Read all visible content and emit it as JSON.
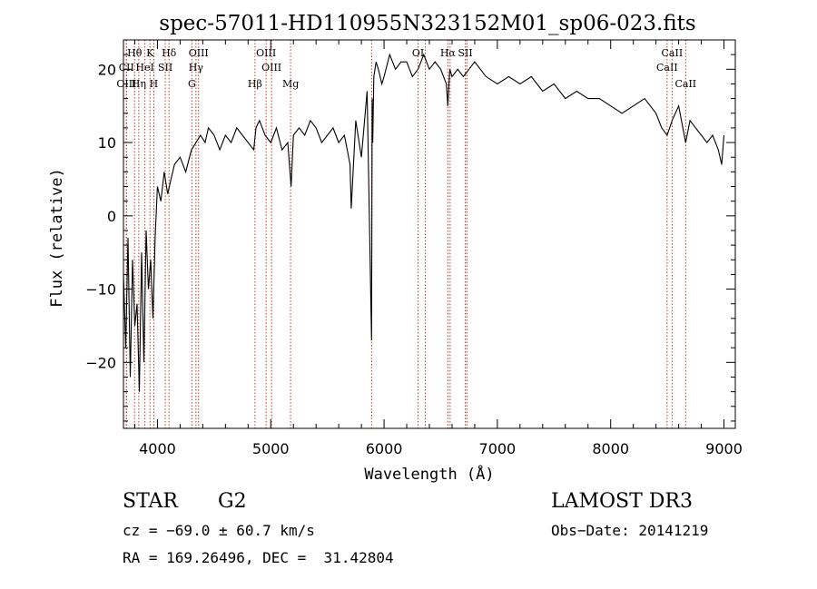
{
  "chart_data": {
    "type": "line",
    "title": "spec-57011-HD110955N323152M01_sp06-023.fits",
    "xlabel": "Wavelength (Å)",
    "ylabel": "Flux (relative)",
    "xlim": [
      3700,
      9100
    ],
    "ylim": [
      -29,
      24
    ],
    "x_ticks": [
      4000,
      5000,
      6000,
      7000,
      8000,
      9000
    ],
    "x_tick_labels": [
      "4000",
      "5000",
      "6000",
      "7000",
      "8000",
      "9000"
    ],
    "y_ticks": [
      -20,
      -10,
      0,
      10,
      20
    ],
    "y_tick_labels": [
      "−20",
      "−10",
      "0",
      "10",
      "20"
    ],
    "series": [
      {
        "name": "flux",
        "x": [
          3700,
          3720,
          3740,
          3760,
          3780,
          3800,
          3820,
          3840,
          3860,
          3880,
          3900,
          3920,
          3940,
          3960,
          3980,
          4000,
          4030,
          4060,
          4090,
          4120,
          4150,
          4200,
          4250,
          4300,
          4340,
          4380,
          4420,
          4450,
          4500,
          4550,
          4600,
          4650,
          4700,
          4750,
          4800,
          4850,
          4870,
          4900,
          4950,
          5000,
          5050,
          5100,
          5150,
          5180,
          5200,
          5250,
          5300,
          5350,
          5400,
          5450,
          5500,
          5550,
          5600,
          5650,
          5700,
          5710,
          5750,
          5800,
          5850,
          5890,
          5895,
          5900,
          5910,
          5930,
          5950,
          5980,
          6000,
          6050,
          6100,
          6150,
          6200,
          6250,
          6300,
          6350,
          6400,
          6450,
          6500,
          6550,
          6563,
          6580,
          6600,
          6650,
          6700,
          6750,
          6800,
          6900,
          7000,
          7100,
          7200,
          7300,
          7400,
          7500,
          7600,
          7700,
          7800,
          7900,
          8000,
          8100,
          8200,
          8300,
          8400,
          8450,
          8498,
          8542,
          8600,
          8662,
          8700,
          8750,
          8800,
          8850,
          8900,
          8950,
          8980,
          9000
        ],
        "y": [
          -8,
          -18,
          -3,
          -22,
          -6,
          -15,
          -12,
          -24,
          -5,
          -20,
          -2,
          -10,
          -6,
          -14,
          -3,
          4,
          2,
          6,
          3,
          5,
          7,
          8,
          6,
          9,
          10,
          11,
          10,
          12,
          11,
          9,
          11,
          10,
          12,
          11,
          10,
          9,
          12,
          13,
          11,
          10,
          12,
          9,
          10,
          4,
          11,
          12,
          11,
          13,
          12,
          10,
          11,
          12,
          10,
          11,
          7,
          1,
          13,
          8,
          17,
          -17,
          16,
          10,
          19,
          21,
          20,
          18,
          19,
          22,
          20,
          21,
          21,
          19,
          20,
          22,
          20,
          21,
          20,
          18,
          15,
          20,
          19,
          20,
          19,
          20,
          21,
          19,
          18,
          19,
          18,
          19,
          17,
          18,
          16,
          17,
          16,
          16,
          15,
          14,
          15,
          16,
          14,
          12,
          11,
          13,
          15,
          10,
          13,
          12,
          11,
          10,
          11,
          9,
          7,
          11
        ]
      }
    ],
    "line_markers": [
      {
        "name": "Hθ",
        "x": 3798,
        "row": 0
      },
      {
        "name": "K",
        "x": 3934,
        "row": 0
      },
      {
        "name": "Hδ",
        "x": 4102,
        "row": 0
      },
      {
        "name": "OIII",
        "x": 4363,
        "row": 0
      },
      {
        "name": "OIII",
        "x": 4959,
        "row": 0
      },
      {
        "name": "OI",
        "x": 6300,
        "row": 0
      },
      {
        "name": "Hα",
        "x": 6563,
        "row": 0
      },
      {
        "name": "SII",
        "x": 6717,
        "row": 0
      },
      {
        "name": "CaII",
        "x": 8542,
        "row": 0
      },
      {
        "name": "CII",
        "x": 3726,
        "row": 1
      },
      {
        "name": "HeI",
        "x": 3889,
        "row": 1
      },
      {
        "name": "SII",
        "x": 4069,
        "row": 1
      },
      {
        "name": "Hγ",
        "x": 4340,
        "row": 1
      },
      {
        "name": "OIII",
        "x": 5007,
        "row": 1
      },
      {
        "name": "CaII",
        "x": 8498,
        "row": 1
      },
      {
        "name": "OIII",
        "x": 3727,
        "row": 2
      },
      {
        "name": "Hη",
        "x": 3835,
        "row": 2
      },
      {
        "name": "H",
        "x": 3968,
        "row": 2
      },
      {
        "name": "G",
        "x": 4304,
        "row": 2
      },
      {
        "name": "Hβ",
        "x": 4861,
        "row": 2
      },
      {
        "name": "Mg",
        "x": 5175,
        "row": 2
      },
      {
        "name": "CaII",
        "x": 8662,
        "row": 2
      }
    ],
    "extra_guides": [
      5890,
      6364,
      6583,
      6731
    ],
    "grid": false,
    "legend": "none"
  },
  "info": {
    "object_type": "STAR",
    "subclass": "G2",
    "survey": "LAMOST DR3",
    "redshift": "cz = −69.0 ± 60.7 km/s",
    "obs_date": "Obs−Date: 20141219",
    "coords": "RA = 169.26496, DEC =  31.42804"
  }
}
